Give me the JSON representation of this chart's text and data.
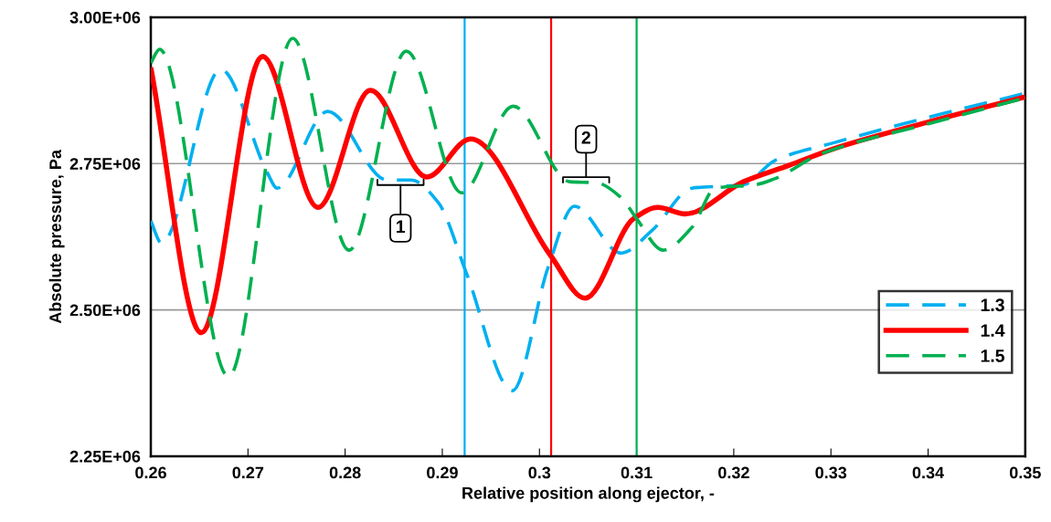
{
  "chart_data": {
    "type": "line",
    "xlabel": "Relative position along ejector, -",
    "ylabel": "Absolute pressure, Pa",
    "xlim": [
      0.26,
      0.35
    ],
    "xticks": [
      0.26,
      0.27,
      0.28,
      0.29,
      0.3,
      0.31,
      0.32,
      0.33,
      0.34,
      0.35
    ],
    "ylim": [
      2250000,
      3000000
    ],
    "yticks": [
      {
        "value": 2250000,
        "label": "2.25E+06"
      },
      {
        "value": 2500000,
        "label": "2.50E+06"
      },
      {
        "value": 2750000,
        "label": "2.75E+06"
      },
      {
        "value": 3000000,
        "label": "3.00E+06"
      }
    ],
    "grid": "y",
    "legend": "bottom right",
    "marker": "none",
    "series": [
      {
        "name": "1.3",
        "color": "#00b0f0",
        "line_style": "dashed",
        "x": [
          0.26,
          0.2611,
          0.2672,
          0.272,
          0.273,
          0.2782,
          0.2843,
          0.2868,
          0.2896,
          0.2925,
          0.2972,
          0.3009,
          0.3036,
          0.3084,
          0.3116,
          0.3157,
          0.321,
          0.3242,
          0.3304,
          0.3398,
          0.35
        ],
        "values": [
          2652000,
          2614000,
          2911000,
          2734000,
          2708000,
          2839000,
          2722000,
          2722000,
          2683000,
          2562000,
          2362000,
          2573000,
          2677000,
          2597000,
          2636000,
          2708000,
          2714000,
          2755000,
          2786000,
          2828000,
          2870000
        ]
      },
      {
        "name": "1.4",
        "color": "#ff0000",
        "line_style": "solid",
        "x": [
          0.26,
          0.2652,
          0.2715,
          0.2772,
          0.2826,
          0.2884,
          0.2929,
          0.3011,
          0.3047,
          0.3097,
          0.3122,
          0.315,
          0.321,
          0.3257,
          0.3304,
          0.3398,
          0.35
        ],
        "values": [
          2914000,
          2461000,
          2933000,
          2675000,
          2875000,
          2727000,
          2792000,
          2594000,
          2520000,
          2656000,
          2675000,
          2664000,
          2719000,
          2747000,
          2776000,
          2820000,
          2864000
        ]
      },
      {
        "name": "1.5",
        "color": "#00b050",
        "line_style": "dashed",
        "x": [
          0.26,
          0.2609,
          0.268,
          0.2746,
          0.2804,
          0.2863,
          0.292,
          0.2973,
          0.3031,
          0.3059,
          0.3084,
          0.31,
          0.3127,
          0.3157,
          0.3181,
          0.3223,
          0.3242,
          0.3289,
          0.3398,
          0.35
        ],
        "values": [
          2922000,
          2945000,
          2386000,
          2964000,
          2602000,
          2942000,
          2700000,
          2848000,
          2719000,
          2717000,
          2692000,
          2656000,
          2602000,
          2641000,
          2708000,
          2714000,
          2724000,
          2766000,
          2817000,
          2862000
        ]
      }
    ],
    "ref_lines": [
      {
        "axis": "x",
        "value": 0.2923,
        "color": "#00b0f0"
      },
      {
        "axis": "x",
        "value": 0.3012,
        "color": "#ff0000"
      },
      {
        "axis": "x",
        "value": 0.31,
        "color": "#00b050"
      }
    ],
    "annotations": [
      {
        "text": "1",
        "x": 0.2857,
        "y": 2722000
      },
      {
        "text": "2",
        "x": 0.3048,
        "y": 2718000
      }
    ]
  }
}
